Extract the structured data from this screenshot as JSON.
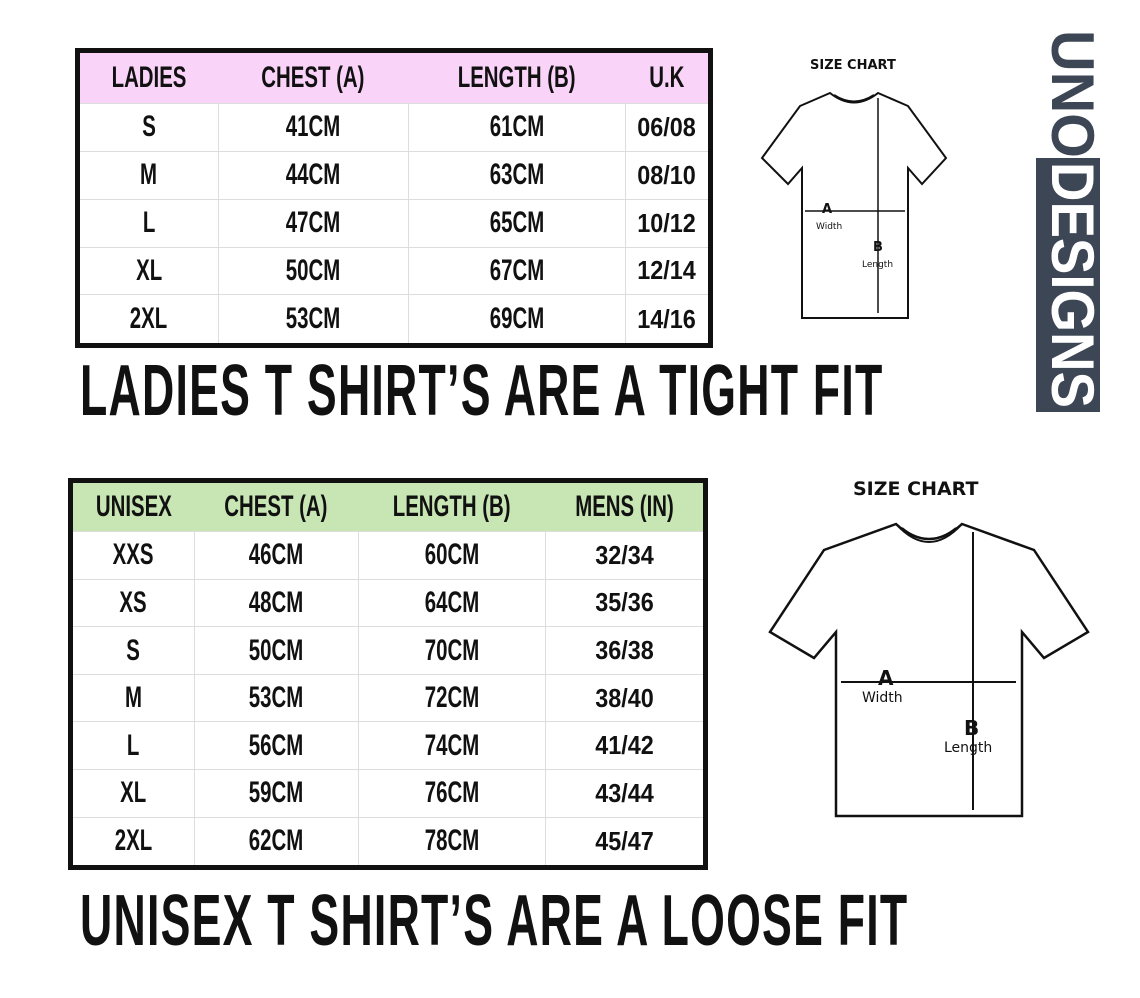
{
  "ladies": {
    "headers": [
      "LADIES",
      "CHEST (A)",
      "LENGTH (B)",
      "U.K"
    ],
    "rows": [
      [
        "S",
        "41CM",
        "61CM",
        "06/08"
      ],
      [
        "M",
        "44CM",
        "63CM",
        "08/10"
      ],
      [
        "L",
        "47CM",
        "65CM",
        "10/12"
      ],
      [
        "XL",
        "50CM",
        "67CM",
        "12/14"
      ],
      [
        "2XL",
        "53CM",
        "69CM",
        "14/16"
      ]
    ],
    "caption": "LADIES T SHIRT’S ARE A TIGHT FIT",
    "header_color": "#fad4f8"
  },
  "unisex": {
    "headers": [
      "UNISEX",
      "CHEST (A)",
      "LENGTH (B)",
      "MENS (IN)"
    ],
    "rows": [
      [
        "XXS",
        "46CM",
        "60CM",
        "32/34"
      ],
      [
        "XS",
        "48CM",
        "64CM",
        "35/36"
      ],
      [
        "S",
        "50CM",
        "70CM",
        "36/38"
      ],
      [
        "M",
        "53CM",
        "72CM",
        "38/40"
      ],
      [
        "L",
        "56CM",
        "74CM",
        "41/42"
      ],
      [
        "XL",
        "59CM",
        "76CM",
        "43/44"
      ],
      [
        "2XL",
        "62CM",
        "78CM",
        "45/47"
      ]
    ],
    "caption": "UNISEX T SHIRT’S ARE A LOOSE FIT",
    "header_color": "#c8e6b4"
  },
  "diagram": {
    "title": "SIZE CHART",
    "a": "A",
    "a_label": "Width",
    "b": "B",
    "b_label": "Length"
  },
  "logo": {
    "text": "UNODESIGNS",
    "color": "#3d4654"
  }
}
